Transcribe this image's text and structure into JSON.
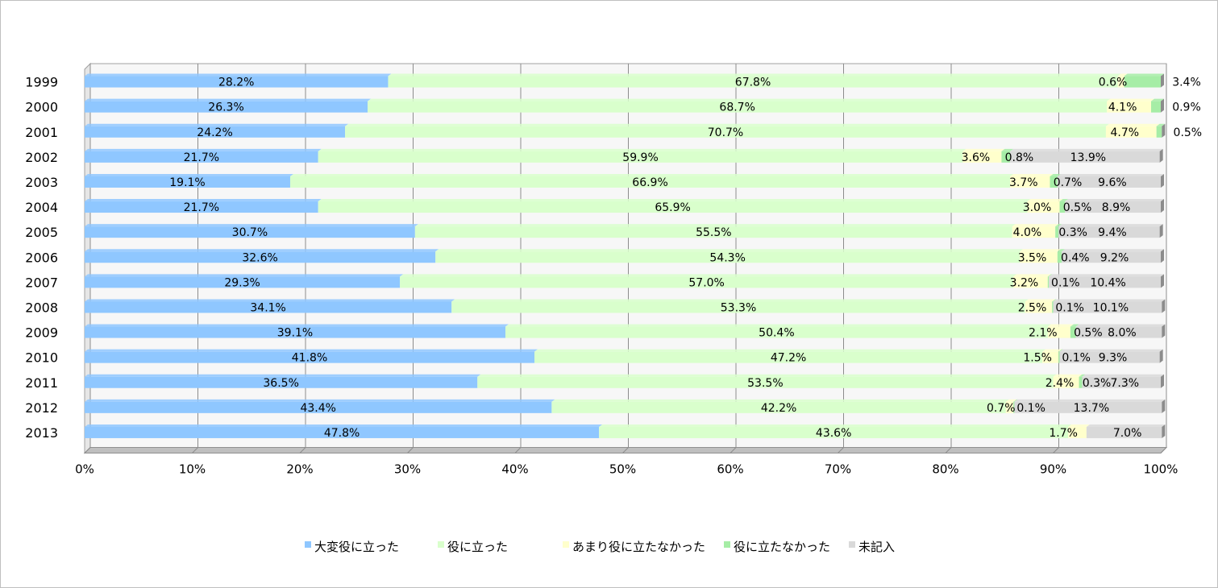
{
  "chart_data": {
    "type": "bar",
    "orientation": "horizontal",
    "stacked": "percent",
    "categories": [
      "1999",
      "2000",
      "2001",
      "2002",
      "2003",
      "2004",
      "2005",
      "2006",
      "2007",
      "2008",
      "2009",
      "2010",
      "2011",
      "2012",
      "2013"
    ],
    "series": [
      {
        "name": "大変役に立った",
        "color": "#8fc7ff",
        "values": [
          28.2,
          26.3,
          24.2,
          21.7,
          19.1,
          21.7,
          30.7,
          32.6,
          29.3,
          34.1,
          39.1,
          41.8,
          36.5,
          43.4,
          47.8
        ]
      },
      {
        "name": "役に立った",
        "color": "#d9ffcc",
        "values": [
          67.8,
          68.7,
          70.7,
          59.9,
          66.9,
          65.9,
          55.5,
          54.3,
          57.0,
          53.3,
          50.4,
          47.2,
          53.5,
          42.2,
          43.6
        ]
      },
      {
        "name": "あまり役に立たなかった",
        "color": "#ffffcc",
        "values": [
          0.6,
          4.1,
          4.7,
          3.6,
          3.7,
          3.0,
          4.0,
          3.5,
          3.2,
          2.5,
          2.1,
          1.5,
          2.4,
          0.7,
          1.7
        ]
      },
      {
        "name": "役に立たなかった",
        "color": "#a6eda6",
        "values": [
          3.4,
          0.9,
          0.5,
          0.8,
          0.7,
          0.5,
          0.3,
          0.4,
          0.1,
          0.1,
          0.5,
          0.1,
          0.3,
          0.1,
          0.0
        ]
      },
      {
        "name": "未記入",
        "color": "#d9d9d9",
        "values": [
          0.0,
          0.0,
          0.0,
          13.9,
          9.6,
          8.9,
          9.4,
          9.2,
          10.4,
          10.1,
          8.0,
          9.3,
          7.3,
          13.7,
          7.0
        ]
      }
    ],
    "data_labels": [
      [
        "28.2%",
        "67.8%",
        "0.6%",
        "3.4%",
        ""
      ],
      [
        "26.3%",
        "68.7%",
        "4.1%",
        "0.9%",
        ""
      ],
      [
        "24.2%",
        "70.7%",
        "4.7%",
        "0.5%",
        ""
      ],
      [
        "21.7%",
        "59.9%",
        "3.6%",
        "0.8%",
        "13.9%"
      ],
      [
        "19.1%",
        "66.9%",
        "3.7%",
        "0.7%",
        "9.6%"
      ],
      [
        "21.7%",
        "65.9%",
        "3.0%",
        "0.5%",
        "8.9%"
      ],
      [
        "30.7%",
        "55.5%",
        "4.0%",
        "0.3%",
        "9.4%"
      ],
      [
        "32.6%",
        "54.3%",
        "3.5%",
        "0.4%",
        "9.2%"
      ],
      [
        "29.3%",
        "57.0%",
        "3.2%",
        "0.1%",
        "10.4%"
      ],
      [
        "34.1%",
        "53.3%",
        "2.5%",
        "0.1%",
        "10.1%"
      ],
      [
        "39.1%",
        "50.4%",
        "2.1%",
        "0.5%",
        "8.0%"
      ],
      [
        "41.8%",
        "47.2%",
        "1.5%",
        "0.1%",
        "9.3%"
      ],
      [
        "36.5%",
        "53.5%",
        "2.4%",
        "0.3%",
        "7.3%"
      ],
      [
        "43.4%",
        "42.2%",
        "0.7%",
        "0.1%",
        "13.7%"
      ],
      [
        "47.8%",
        "43.6%",
        "1.7%",
        "",
        "7.0%"
      ]
    ],
    "x_ticks": [
      "0%",
      "10%",
      "20%",
      "30%",
      "40%",
      "50%",
      "60%",
      "70%",
      "80%",
      "90%",
      "100%"
    ],
    "xlim": [
      0,
      100
    ],
    "grid": true,
    "legend_position": "bottom",
    "title": "",
    "xlabel": "",
    "ylabel": ""
  }
}
